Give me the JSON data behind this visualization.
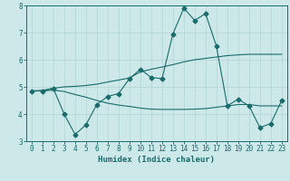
{
  "xlabel": "Humidex (Indice chaleur)",
  "ylabel": "",
  "background_color": "#cde8e8",
  "grid_color": "#b0d4d4",
  "line_color": "#1a6b6b",
  "xlim": [
    -0.5,
    23.5
  ],
  "ylim": [
    3,
    8
  ],
  "xticks": [
    0,
    1,
    2,
    3,
    4,
    5,
    6,
    7,
    8,
    9,
    10,
    11,
    12,
    13,
    14,
    15,
    16,
    17,
    18,
    19,
    20,
    21,
    22,
    23
  ],
  "yticks": [
    3,
    4,
    5,
    6,
    7,
    8
  ],
  "line1_x": [
    0,
    1,
    2,
    3,
    4,
    5,
    6,
    7,
    8,
    9,
    10,
    11,
    12,
    13,
    14,
    15,
    16,
    17,
    18,
    19,
    20,
    21,
    22,
    23
  ],
  "line1_y": [
    4.85,
    4.85,
    4.95,
    4.0,
    3.25,
    3.6,
    4.35,
    4.65,
    4.75,
    5.3,
    5.65,
    5.35,
    5.3,
    6.95,
    7.9,
    7.45,
    7.7,
    6.5,
    4.3,
    4.55,
    4.3,
    3.5,
    3.65,
    4.5
  ],
  "line2_x": [
    0,
    1,
    2,
    3,
    4,
    5,
    6,
    7,
    8,
    9,
    10,
    11,
    12,
    13,
    14,
    15,
    16,
    17,
    18,
    19,
    20,
    21,
    22,
    23
  ],
  "line2_y": [
    4.85,
    4.87,
    4.95,
    5.0,
    5.02,
    5.05,
    5.1,
    5.18,
    5.25,
    5.33,
    5.55,
    5.65,
    5.73,
    5.82,
    5.92,
    6.0,
    6.05,
    6.1,
    6.15,
    6.18,
    6.2,
    6.2,
    6.2,
    6.2
  ],
  "line3_x": [
    0,
    1,
    2,
    3,
    4,
    5,
    6,
    7,
    8,
    9,
    10,
    11,
    12,
    13,
    14,
    15,
    16,
    17,
    18,
    19,
    20,
    21,
    22,
    23
  ],
  "line3_y": [
    4.85,
    4.85,
    4.88,
    4.83,
    4.72,
    4.62,
    4.5,
    4.4,
    4.33,
    4.28,
    4.22,
    4.18,
    4.17,
    4.17,
    4.17,
    4.18,
    4.2,
    4.25,
    4.3,
    4.35,
    4.35,
    4.3,
    4.3,
    4.3
  ],
  "marker": "D",
  "markersize": 2.5,
  "linewidth": 0.8,
  "tick_fontsize": 5.5,
  "xlabel_fontsize": 6.5
}
